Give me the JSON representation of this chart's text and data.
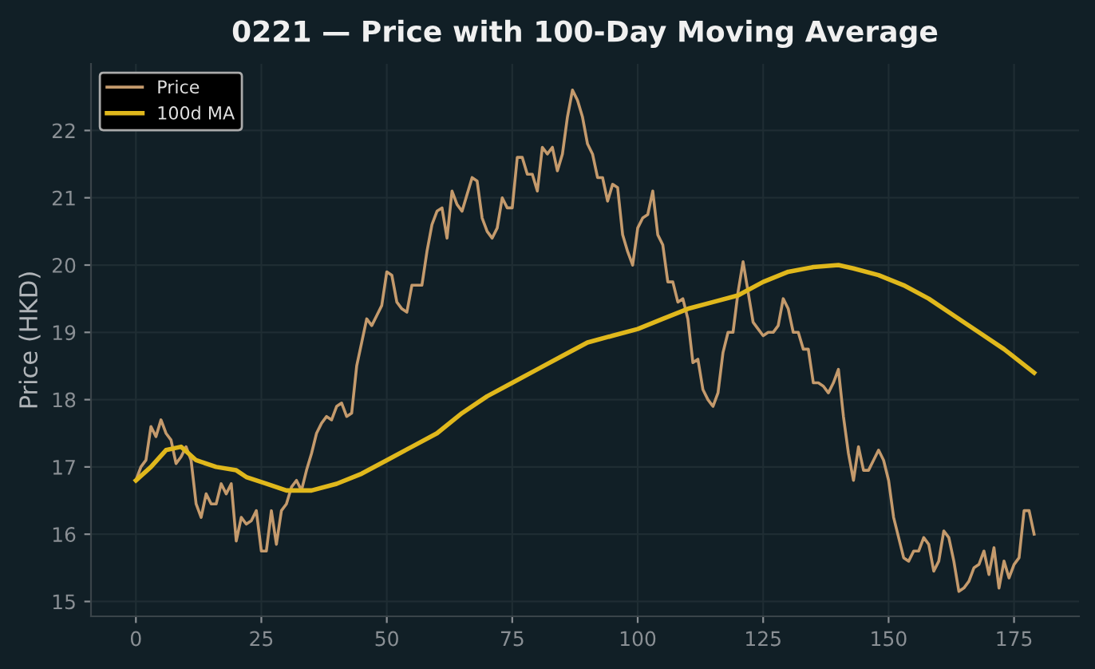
{
  "chart_data": {
    "type": "line",
    "title": "0221 — Price with 100-Day Moving Average",
    "ylabel": "Price (HKD)",
    "xlim": [
      -8.95,
      187.95
    ],
    "ylim": [
      14.78,
      22.99
    ],
    "xticks": [
      0,
      25,
      50,
      75,
      100,
      125,
      150,
      175
    ],
    "yticks": [
      15,
      16,
      17,
      18,
      19,
      20,
      21,
      22
    ],
    "grid": true,
    "legend": "top left",
    "line_style": "solid",
    "marker": "none",
    "series": [
      {
        "name": "Price",
        "color": "#c49a6c",
        "x": [
          0,
          1,
          2,
          3,
          4,
          5,
          6,
          7,
          8,
          9,
          10,
          11,
          12,
          13,
          14,
          15,
          16,
          17,
          18,
          19,
          20,
          21,
          22,
          23,
          24,
          25,
          26,
          27,
          28,
          29,
          30,
          31,
          32,
          33,
          34,
          35,
          36,
          37,
          38,
          39,
          40,
          41,
          42,
          43,
          44,
          45,
          46,
          47,
          48,
          49,
          50,
          51,
          52,
          53,
          54,
          55,
          56,
          57,
          58,
          59,
          60,
          61,
          62,
          63,
          64,
          65,
          66,
          67,
          68,
          69,
          70,
          71,
          72,
          73,
          74,
          75,
          76,
          77,
          78,
          79,
          80,
          81,
          82,
          83,
          84,
          85,
          86,
          87,
          88,
          89,
          90,
          91,
          92,
          93,
          94,
          95,
          96,
          97,
          98,
          99,
          100,
          101,
          102,
          103,
          104,
          105,
          106,
          107,
          108,
          109,
          110,
          111,
          112,
          113,
          114,
          115,
          116,
          117,
          118,
          119,
          120,
          121,
          122,
          123,
          124,
          125,
          126,
          127,
          128,
          129,
          130,
          131,
          132,
          133,
          134,
          135,
          136,
          137,
          138,
          139,
          140,
          141,
          142,
          143,
          144,
          145,
          146,
          147,
          148,
          149,
          150,
          151,
          152,
          153,
          154,
          155,
          156,
          157,
          158,
          159,
          160,
          161,
          162,
          163,
          164,
          165,
          166,
          167,
          168,
          169,
          170,
          171,
          172,
          173,
          174,
          175,
          176,
          177,
          178,
          179
        ],
        "values": [
          16.8,
          17.0,
          17.1,
          17.6,
          17.45,
          17.7,
          17.5,
          17.4,
          17.05,
          17.15,
          17.3,
          17.1,
          16.45,
          16.25,
          16.6,
          16.45,
          16.45,
          16.75,
          16.6,
          16.75,
          15.9,
          16.25,
          16.15,
          16.2,
          16.35,
          15.75,
          15.75,
          16.35,
          15.85,
          16.35,
          16.45,
          16.7,
          16.8,
          16.65,
          16.95,
          17.2,
          17.5,
          17.65,
          17.75,
          17.7,
          17.9,
          17.95,
          17.75,
          17.8,
          18.5,
          18.85,
          19.2,
          19.1,
          19.25,
          19.4,
          19.9,
          19.85,
          19.45,
          19.35,
          19.3,
          19.7,
          19.7,
          19.7,
          20.2,
          20.6,
          20.8,
          20.85,
          20.4,
          21.1,
          20.9,
          20.8,
          21.05,
          21.3,
          21.25,
          20.7,
          20.5,
          20.4,
          20.55,
          21.0,
          20.85,
          20.85,
          21.6,
          21.6,
          21.35,
          21.35,
          21.1,
          21.75,
          21.65,
          21.75,
          21.4,
          21.65,
          22.2,
          22.6,
          22.45,
          22.2,
          21.8,
          21.65,
          21.3,
          21.3,
          20.95,
          21.2,
          21.15,
          20.45,
          20.2,
          20.0,
          20.55,
          20.7,
          20.75,
          21.1,
          20.45,
          20.3,
          19.75,
          19.75,
          19.45,
          19.5,
          19.2,
          18.55,
          18.6,
          18.15,
          18.0,
          17.9,
          18.1,
          18.7,
          19.0,
          19.0,
          19.6,
          20.05,
          19.6,
          19.15,
          19.05,
          18.95,
          19.0,
          19.0,
          19.1,
          19.5,
          19.35,
          19.0,
          19.0,
          18.75,
          18.75,
          18.25,
          18.25,
          18.2,
          18.1,
          18.25,
          18.45,
          17.75,
          17.2,
          16.8,
          17.3,
          16.95,
          16.95,
          17.1,
          17.25,
          17.1,
          16.8,
          16.25,
          15.95,
          15.65,
          15.6,
          15.75,
          15.75,
          15.95,
          15.85,
          15.45,
          15.6,
          16.05,
          15.95,
          15.6,
          15.15,
          15.2,
          15.3,
          15.5,
          15.55,
          15.75,
          15.4,
          15.8,
          15.2,
          15.6,
          15.35,
          15.55,
          15.65,
          16.35,
          16.35,
          16.0
        ]
      },
      {
        "name": "100d MA",
        "color": "#e0b81c",
        "x": [
          0,
          3,
          6,
          9,
          12,
          16,
          20,
          22,
          26,
          30,
          35,
          40,
          45,
          50,
          55,
          60,
          65,
          70,
          75,
          80,
          85,
          90,
          95,
          100,
          105,
          110,
          115,
          120,
          125,
          130,
          135,
          140,
          143,
          148,
          153,
          158,
          163,
          168,
          173,
          179
        ],
        "values": [
          16.8,
          17.0,
          17.25,
          17.3,
          17.1,
          17.0,
          16.95,
          16.85,
          16.75,
          16.65,
          16.65,
          16.75,
          16.9,
          17.1,
          17.3,
          17.5,
          17.8,
          18.05,
          18.25,
          18.45,
          18.65,
          18.85,
          18.95,
          19.05,
          19.2,
          19.35,
          19.45,
          19.55,
          19.75,
          19.9,
          19.97,
          20.0,
          19.95,
          19.85,
          19.7,
          19.5,
          19.25,
          19.0,
          18.75,
          18.4
        ]
      }
    ]
  }
}
